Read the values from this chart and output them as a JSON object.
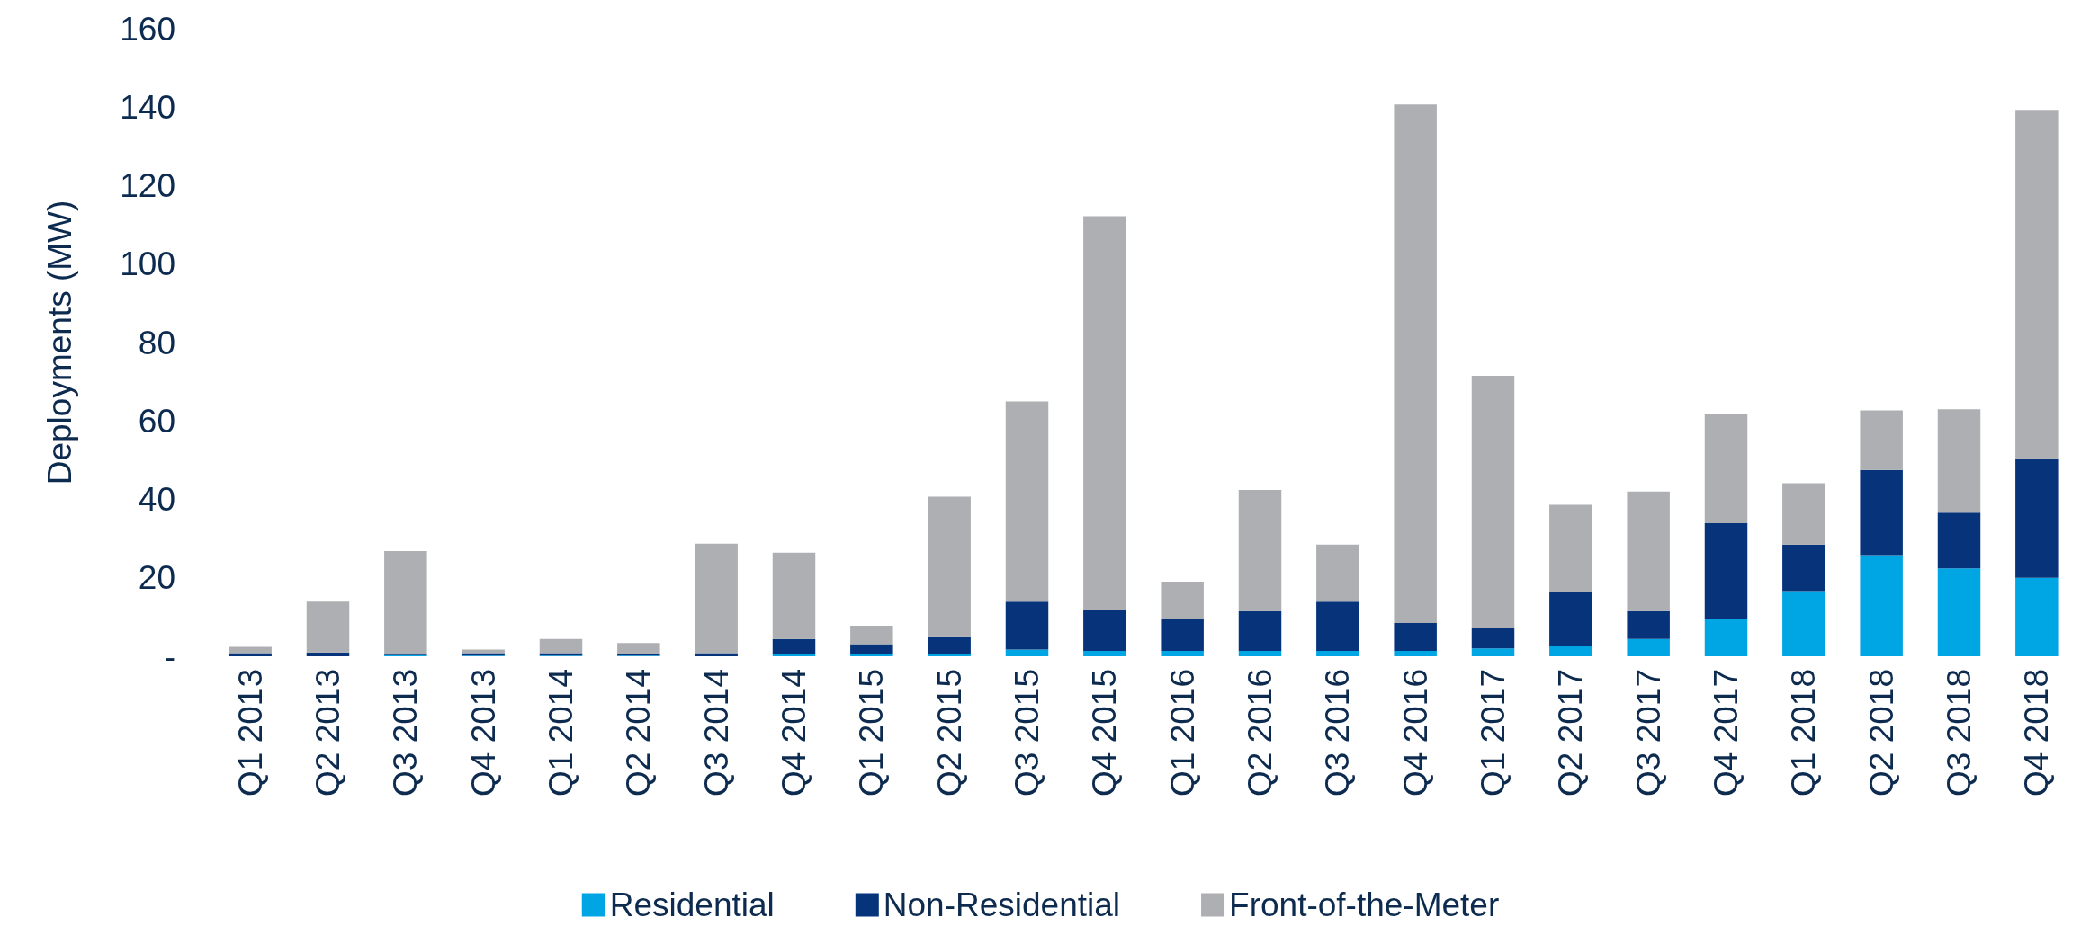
{
  "chart_data": {
    "type": "bar",
    "stacked": true,
    "ylabel": "Deployments (MW)",
    "categories": [
      "Q1 2013",
      "Q2 2013",
      "Q3 2013",
      "Q4 2013",
      "Q1 2014",
      "Q2 2014",
      "Q3 2014",
      "Q4 2014",
      "Q1 2015",
      "Q2 2015",
      "Q3 2015",
      "Q4 2015",
      "Q1 2016",
      "Q2 2016",
      "Q3 2016",
      "Q4 2016",
      "Q1 2017",
      "Q2 2017",
      "Q3 2017",
      "Q4 2017",
      "Q1 2018",
      "Q2 2018",
      "Q3 2018",
      "Q4 2018"
    ],
    "series": [
      {
        "name": "Residential",
        "color": "#00a5e3",
        "values": [
          null,
          null,
          0.3,
          0.2,
          0.2,
          0.2,
          null,
          0.6,
          0.5,
          0.6,
          1.7,
          1.4,
          1.4,
          1.4,
          1.4,
          1.4,
          2.0,
          2.6,
          4.4,
          9.5,
          16.6,
          25.8,
          22.4,
          20.0
        ]
      },
      {
        "name": "Non-Residential",
        "color": "#06337a",
        "values": [
          0.8,
          1.0,
          0.2,
          0.6,
          0.6,
          0.3,
          0.8,
          3.8,
          2.6,
          4.5,
          12.2,
          10.5,
          8.1,
          10.1,
          12.5,
          7.1,
          5.1,
          13.7,
          7.1,
          24.4,
          11.9,
          21.7,
          14.2,
          30.5
        ]
      },
      {
        "name": "Front-of-the-Meter",
        "color": "#adafb2",
        "values": [
          1.6,
          12.9,
          26.3,
          0.9,
          3.6,
          2.9,
          27.9,
          22.0,
          4.7,
          35.6,
          51.1,
          100.3,
          9.5,
          30.9,
          14.6,
          132.2,
          64.4,
          22.3,
          30.5,
          27.8,
          15.6,
          15.2,
          26.4,
          88.8
        ]
      }
    ],
    "ylim": [
      0,
      160
    ],
    "yticks": [
      {
        "value": 0,
        "label": "-"
      },
      20,
      40,
      60,
      80,
      100,
      120,
      140,
      160
    ],
    "grid": false,
    "legend": "bottom"
  }
}
